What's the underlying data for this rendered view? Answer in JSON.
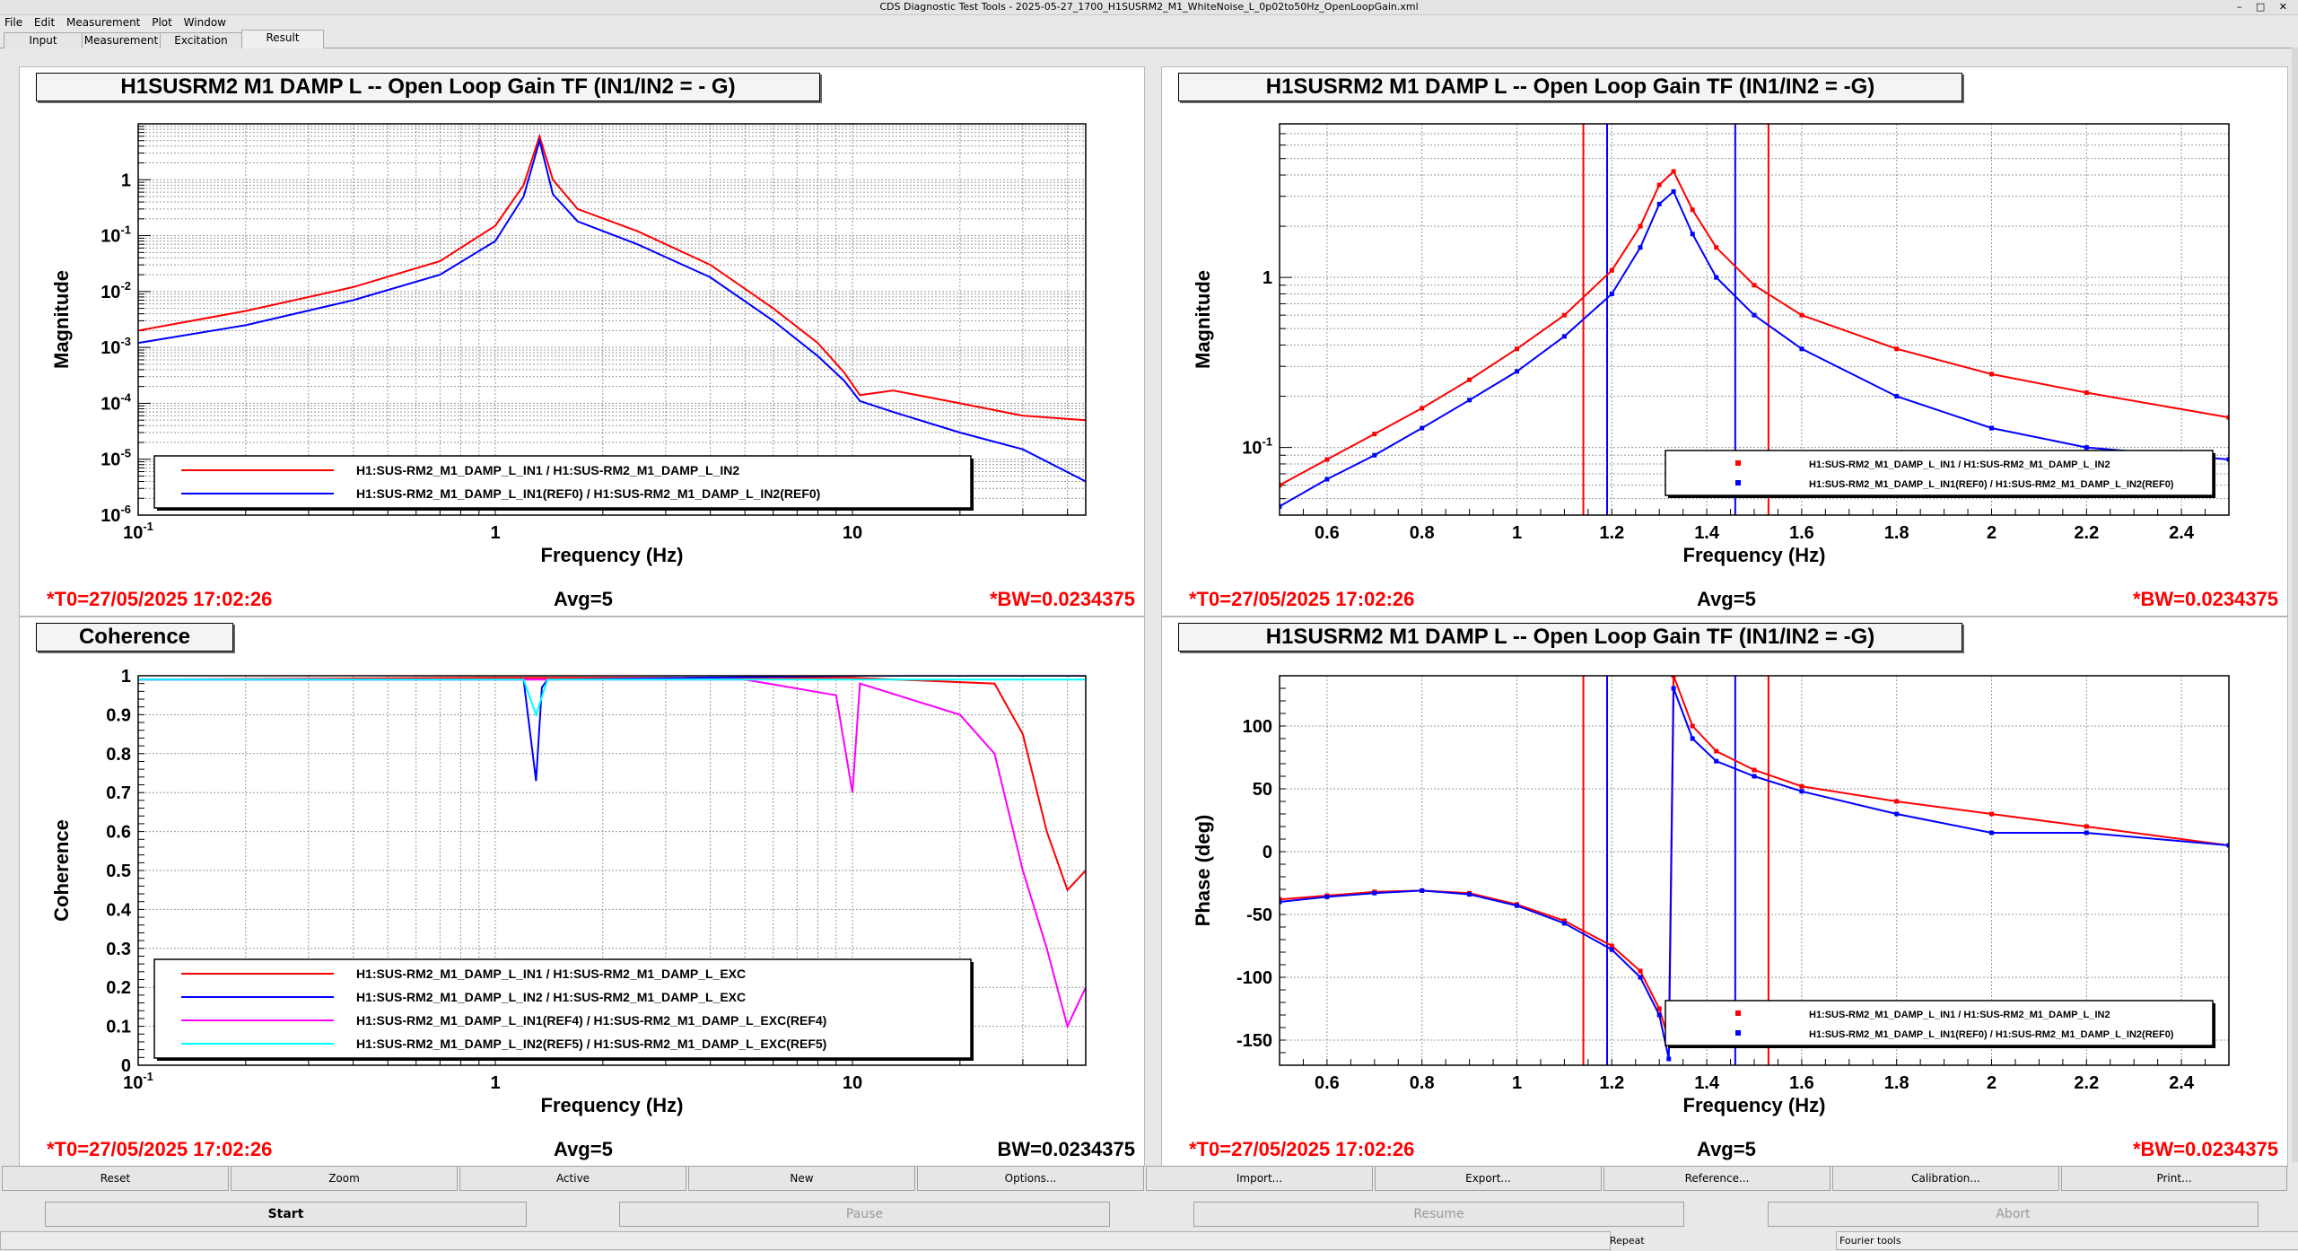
{
  "window": {
    "title": "CDS Diagnostic Test Tools - 2025-05-27_1700_H1SUSRM2_M1_WhiteNoise_L_0p02to50Hz_OpenLoopGain.xml"
  },
  "menu": [
    "File",
    "Edit",
    "Measurement",
    "Plot",
    "Window"
  ],
  "tabs": [
    "Input",
    "Measurement",
    "Excitation",
    "Result"
  ],
  "panels": [
    {
      "title": "H1SUSRM2 M1 DAMP L -- Open Loop Gain TF (IN1/IN2 = - G)",
      "t0": "*T0=27/05/2025 17:02:26",
      "avg": "Avg=5",
      "bw": "*BW=0.0234375"
    },
    {
      "title": "H1SUSRM2 M1 DAMP L -- Open Loop Gain TF (IN1/IN2 = -G)",
      "t0": "*T0=27/05/2025 17:02:26",
      "avg": "Avg=5",
      "bw": "*BW=0.0234375"
    },
    {
      "title": "Coherence",
      "t0": "*T0=27/05/2025 17:02:26",
      "avg": "Avg=5",
      "bw": "BW=0.0234375"
    },
    {
      "title": "H1SUSRM2 M1 DAMP L -- Open Loop Gain TF (IN1/IN2 = -G)",
      "t0": "*T0=27/05/2025 17:02:26",
      "avg": "Avg=5",
      "bw": "*BW=0.0234375"
    }
  ],
  "buttons_row1": [
    "Reset",
    "Zoom",
    "Active",
    "New",
    "Options...",
    "Import...",
    "Export...",
    "Reference...",
    "Calibration...",
    "Print..."
  ],
  "buttons_row2": [
    {
      "label": "Start",
      "enabled": true
    },
    {
      "label": "Pause",
      "enabled": false
    },
    {
      "label": "Resume",
      "enabled": false
    },
    {
      "label": "Abort",
      "enabled": false
    }
  ],
  "status": [
    "Repeat",
    "Fourier tools"
  ],
  "colors": {
    "ref_red": "#ff0000",
    "ref_blue": "#0000ff",
    "magenta": "#ff00ff",
    "cyan": "#00ffff"
  },
  "chart_data": [
    {
      "type": "line",
      "xlabel": "Frequency (Hz)",
      "ylabel": "Magnitude",
      "xscale": "log",
      "yscale": "log",
      "xlim": [
        0.1,
        45
      ],
      "ylim": [
        1e-06,
        10
      ],
      "x_ticks": [
        "10^{-1}",
        "1",
        "10"
      ],
      "y_ticks": [
        "10^{-6}",
        "10^{-5}",
        "10^{-4}",
        "10^{-3}",
        "10^{-2}",
        "10^{-1}",
        "1"
      ],
      "legend_position": "bottom-left",
      "series": [
        {
          "name": "H1:SUS-RM2_M1_DAMP_L_IN1 / H1:SUS-RM2_M1_DAMP_L_IN2",
          "color": "#ff0000",
          "x": [
            0.1,
            0.2,
            0.4,
            0.7,
            1.0,
            1.2,
            1.33,
            1.45,
            1.7,
            2.5,
            4,
            6,
            8,
            9.5,
            10.5,
            13,
            20,
            30,
            45
          ],
          "y": [
            0.002,
            0.0045,
            0.012,
            0.035,
            0.15,
            0.8,
            6,
            1.0,
            0.3,
            0.12,
            0.03,
            0.005,
            0.0012,
            0.00035,
            0.00014,
            0.00017,
            0.0001,
            6e-05,
            5e-05
          ]
        },
        {
          "name": "H1:SUS-RM2_M1_DAMP_L_IN1(REF0) / H1:SUS-RM2_M1_DAMP_L_IN2(REF0)",
          "color": "#0000ff",
          "x": [
            0.1,
            0.2,
            0.4,
            0.7,
            1.0,
            1.2,
            1.33,
            1.45,
            1.7,
            2.5,
            4,
            6,
            8,
            9.5,
            10.5,
            13,
            20,
            30,
            45
          ],
          "y": [
            0.0012,
            0.0025,
            0.007,
            0.02,
            0.08,
            0.5,
            5,
            0.55,
            0.18,
            0.07,
            0.018,
            0.003,
            0.0007,
            0.00025,
            0.00011,
            7e-05,
            3e-05,
            1.5e-05,
            4e-06
          ]
        }
      ]
    },
    {
      "type": "scatter",
      "xlabel": "Frequency (Hz)",
      "ylabel": "Magnitude",
      "yscale": "log",
      "xlim": [
        0.5,
        2.5
      ],
      "ylim": [
        0.04,
        8
      ],
      "x_ticks": [
        "0.6",
        "0.8",
        "1",
        "1.2",
        "1.4",
        "1.6",
        "1.8",
        "2",
        "2.2",
        "2.4"
      ],
      "y_ticks": [
        "10^{-1}",
        "1"
      ],
      "cursor_lines_red": [
        1.14,
        1.53
      ],
      "cursor_lines_blue": [
        1.19,
        1.46
      ],
      "legend_position": "bottom-right",
      "series": [
        {
          "name": "H1:SUS-RM2_M1_DAMP_L_IN1 / H1:SUS-RM2_M1_DAMP_L_IN2",
          "color": "#ff0000",
          "x": [
            0.5,
            0.6,
            0.7,
            0.8,
            0.9,
            1.0,
            1.1,
            1.2,
            1.26,
            1.3,
            1.33,
            1.37,
            1.42,
            1.5,
            1.6,
            1.8,
            2.0,
            2.2,
            2.5
          ],
          "y": [
            0.06,
            0.085,
            0.12,
            0.17,
            0.25,
            0.38,
            0.6,
            1.1,
            2.0,
            3.5,
            4.2,
            2.5,
            1.5,
            0.9,
            0.6,
            0.38,
            0.27,
            0.21,
            0.15
          ]
        },
        {
          "name": "H1:SUS-RM2_M1_DAMP_L_IN1(REF0) / H1:SUS-RM2_M1_DAMP_L_IN2(REF0)",
          "color": "#0000ff",
          "x": [
            0.5,
            0.6,
            0.7,
            0.8,
            0.9,
            1.0,
            1.1,
            1.2,
            1.26,
            1.3,
            1.33,
            1.37,
            1.42,
            1.5,
            1.6,
            1.8,
            2.0,
            2.2,
            2.5
          ],
          "y": [
            0.045,
            0.065,
            0.09,
            0.13,
            0.19,
            0.28,
            0.45,
            0.8,
            1.5,
            2.7,
            3.2,
            1.8,
            1.0,
            0.6,
            0.38,
            0.2,
            0.13,
            0.1,
            0.085
          ]
        }
      ]
    },
    {
      "type": "line",
      "xlabel": "Frequency (Hz)",
      "ylabel": "Coherence",
      "xscale": "log",
      "xlim": [
        0.1,
        45
      ],
      "ylim": [
        0,
        1
      ],
      "x_ticks": [
        "10^{-1}",
        "1",
        "10"
      ],
      "y_ticks": [
        "0",
        "0.1",
        "0.2",
        "0.3",
        "0.4",
        "0.5",
        "0.6",
        "0.7",
        "0.8",
        "0.9",
        "1"
      ],
      "legend_position": "bottom-left",
      "series": [
        {
          "name": "H1:SUS-RM2_M1_DAMP_L_IN1 / H1:SUS-RM2_M1_DAMP_L_EXC",
          "color": "#ff0000",
          "x": [
            0.1,
            1,
            10,
            25,
            30,
            35,
            40,
            45
          ],
          "y": [
            0.99,
            0.995,
            0.995,
            0.98,
            0.85,
            0.6,
            0.45,
            0.5
          ]
        },
        {
          "name": "H1:SUS-RM2_M1_DAMP_L_IN2 / H1:SUS-RM2_M1_DAMP_L_EXC",
          "color": "#0000ff",
          "x": [
            0.1,
            1.2,
            1.3,
            1.35,
            1.4,
            10,
            45
          ],
          "y": [
            0.99,
            0.99,
            0.73,
            0.97,
            0.99,
            1.0,
            1.0
          ]
        },
        {
          "name": "H1:SUS-RM2_M1_DAMP_L_IN1(REF4) / H1:SUS-RM2_M1_DAMP_L_EXC(REF4)",
          "color": "#ff00ff",
          "x": [
            0.1,
            5,
            9,
            10,
            10.5,
            20,
            25,
            30,
            35,
            40,
            45
          ],
          "y": [
            0.99,
            0.99,
            0.95,
            0.7,
            0.98,
            0.9,
            0.8,
            0.5,
            0.3,
            0.1,
            0.2
          ]
        },
        {
          "name": "H1:SUS-RM2_M1_DAMP_L_IN2(REF5) / H1:SUS-RM2_M1_DAMP_L_EXC(REF5)",
          "color": "#00ffff",
          "x": [
            0.1,
            1.2,
            1.3,
            1.4,
            45
          ],
          "y": [
            0.99,
            0.99,
            0.9,
            0.99,
            0.99
          ]
        }
      ]
    },
    {
      "type": "scatter",
      "xlabel": "Frequency (Hz)",
      "ylabel": "Phase (deg)",
      "xlim": [
        0.5,
        2.5
      ],
      "ylim": [
        -170,
        140
      ],
      "x_ticks": [
        "0.6",
        "0.8",
        "1",
        "1.2",
        "1.4",
        "1.6",
        "1.8",
        "2",
        "2.2",
        "2.4"
      ],
      "y_ticks": [
        "-150",
        "-100",
        "-50",
        "0",
        "50",
        "100"
      ],
      "cursor_lines_red": [
        1.14,
        1.53
      ],
      "cursor_lines_blue": [
        1.19,
        1.46
      ],
      "legend_position": "bottom-right",
      "series": [
        {
          "name": "H1:SUS-RM2_M1_DAMP_L_IN1 / H1:SUS-RM2_M1_DAMP_L_IN2",
          "color": "#ff0000",
          "x": [
            0.5,
            0.6,
            0.7,
            0.8,
            0.9,
            1.0,
            1.1,
            1.2,
            1.26,
            1.3,
            1.32,
            1.33,
            1.37,
            1.42,
            1.5,
            1.6,
            1.8,
            2.0,
            2.2,
            2.5
          ],
          "y": [
            -38,
            -35,
            -32,
            -31,
            -33,
            -42,
            -55,
            -75,
            -95,
            -125,
            -150,
            140,
            100,
            80,
            65,
            52,
            40,
            30,
            20,
            5
          ]
        },
        {
          "name": "H1:SUS-RM2_M1_DAMP_L_IN1(REF0) / H1:SUS-RM2_M1_DAMP_L_IN2(REF0)",
          "color": "#0000ff",
          "x": [
            0.5,
            0.6,
            0.7,
            0.8,
            0.9,
            1.0,
            1.1,
            1.2,
            1.26,
            1.3,
            1.32,
            1.33,
            1.37,
            1.42,
            1.5,
            1.6,
            1.8,
            2.0,
            2.2,
            2.5
          ],
          "y": [
            -40,
            -36,
            -33,
            -31,
            -34,
            -43,
            -57,
            -78,
            -100,
            -130,
            -165,
            130,
            90,
            72,
            60,
            48,
            30,
            15,
            15,
            5
          ]
        }
      ]
    }
  ]
}
